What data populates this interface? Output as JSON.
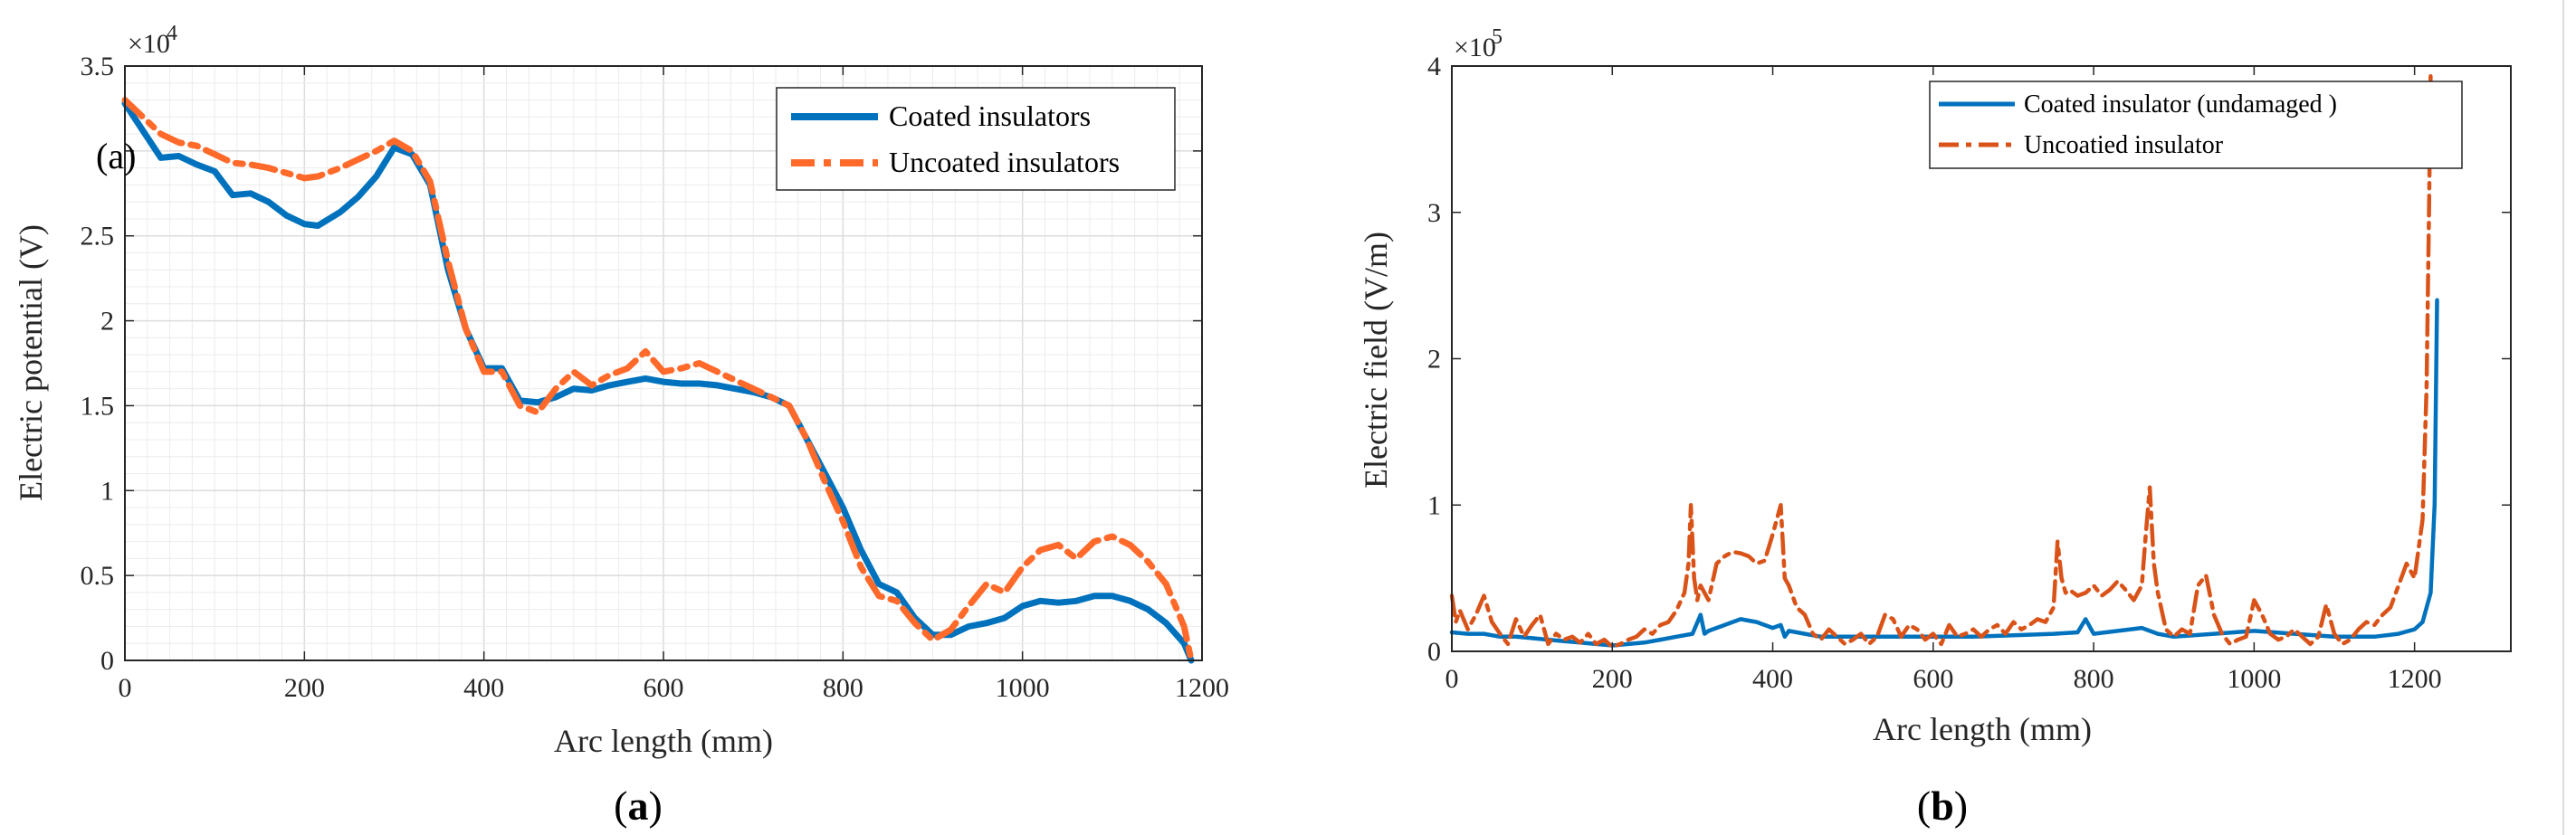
{
  "chart_data": [
    {
      "type": "line",
      "panel_label": "a",
      "title": "",
      "inset_label": "(a)",
      "xlabel": "Arc length (mm)",
      "ylabel": "Electric potential (V)",
      "y_exponent_base": "×10",
      "y_exponent_power": "4",
      "xlim": [
        0,
        1200
      ],
      "ylim": [
        0,
        3.5
      ],
      "xticks": [
        0,
        200,
        400,
        600,
        800,
        1000,
        1200
      ],
      "xtick_labels": [
        "0",
        "200",
        "400",
        "600",
        "800",
        "1000",
        "1200"
      ],
      "yticks": [
        0,
        0.5,
        1,
        1.5,
        2,
        2.5,
        3,
        3.5
      ],
      "ytick_labels": [
        "0",
        "0.5",
        "1",
        "1.5",
        "2",
        "2.5",
        "",
        "3.5"
      ],
      "grid": true,
      "legend_position": "top-right",
      "series": [
        {
          "name": "Coated insulators",
          "color": "#0072BD",
          "style": "solid",
          "x": [
            0,
            20,
            40,
            60,
            80,
            100,
            120,
            140,
            160,
            180,
            200,
            215,
            240,
            260,
            280,
            300,
            320,
            340,
            360,
            380,
            400,
            420,
            440,
            460,
            480,
            500,
            520,
            540,
            560,
            580,
            600,
            620,
            640,
            660,
            680,
            700,
            720,
            740,
            760,
            780,
            800,
            820,
            840,
            860,
            880,
            900,
            920,
            940,
            960,
            980,
            1000,
            1020,
            1040,
            1060,
            1080,
            1100,
            1120,
            1140,
            1160,
            1180,
            1188
          ],
          "values": [
            3.28,
            3.12,
            2.96,
            2.97,
            2.92,
            2.88,
            2.74,
            2.75,
            2.7,
            2.62,
            2.57,
            2.56,
            2.64,
            2.73,
            2.85,
            3.02,
            2.98,
            2.8,
            2.3,
            1.95,
            1.72,
            1.72,
            1.53,
            1.52,
            1.55,
            1.6,
            1.59,
            1.62,
            1.64,
            1.66,
            1.64,
            1.63,
            1.63,
            1.62,
            1.6,
            1.58,
            1.55,
            1.5,
            1.3,
            1.1,
            0.9,
            0.65,
            0.45,
            0.4,
            0.25,
            0.15,
            0.15,
            0.2,
            0.22,
            0.25,
            0.32,
            0.35,
            0.34,
            0.35,
            0.38,
            0.38,
            0.35,
            0.3,
            0.22,
            0.1,
            0.0
          ]
        },
        {
          "name": "Uncoated insulators",
          "color": "#FF6A2B",
          "style": "dash-dot",
          "x": [
            0,
            20,
            40,
            60,
            80,
            100,
            120,
            140,
            160,
            180,
            200,
            215,
            240,
            260,
            280,
            300,
            320,
            340,
            360,
            380,
            400,
            420,
            440,
            460,
            480,
            500,
            520,
            540,
            560,
            580,
            600,
            620,
            640,
            660,
            680,
            700,
            720,
            740,
            760,
            780,
            800,
            820,
            840,
            860,
            880,
            900,
            920,
            940,
            960,
            980,
            1000,
            1020,
            1040,
            1060,
            1080,
            1100,
            1120,
            1140,
            1160,
            1180,
            1188
          ],
          "values": [
            3.3,
            3.2,
            3.1,
            3.05,
            3.03,
            2.98,
            2.93,
            2.92,
            2.9,
            2.87,
            2.84,
            2.85,
            2.9,
            2.95,
            3.0,
            3.06,
            3.0,
            2.82,
            2.35,
            1.95,
            1.7,
            1.7,
            1.5,
            1.46,
            1.6,
            1.7,
            1.62,
            1.68,
            1.72,
            1.82,
            1.7,
            1.72,
            1.75,
            1.7,
            1.65,
            1.6,
            1.55,
            1.5,
            1.3,
            1.05,
            0.82,
            0.55,
            0.38,
            0.35,
            0.22,
            0.12,
            0.18,
            0.32,
            0.45,
            0.4,
            0.55,
            0.65,
            0.68,
            0.6,
            0.7,
            0.73,
            0.68,
            0.58,
            0.45,
            0.2,
            0.0
          ]
        }
      ]
    },
    {
      "type": "line",
      "panel_label": "b",
      "title": "",
      "xlabel": "Arc length (mm)",
      "ylabel": "Electric field (V/m)",
      "y_exponent_base": "×10",
      "y_exponent_power": "5",
      "xlim": [
        0,
        1320
      ],
      "ylim": [
        0,
        4
      ],
      "xticks": [
        0,
        200,
        400,
        600,
        800,
        1000,
        1200
      ],
      "xtick_labels": [
        "0",
        "200",
        "400",
        "600",
        "800",
        "1000",
        "1200"
      ],
      "yticks": [
        0,
        1,
        2,
        3,
        4
      ],
      "ytick_labels": [
        "0",
        "1",
        "2",
        "3",
        "4"
      ],
      "grid": false,
      "legend_position": "top-right",
      "series": [
        {
          "name": "Coated insulator (undamaged )",
          "color": "#0072BD",
          "style": "solid",
          "x": [
            0,
            20,
            40,
            60,
            80,
            100,
            120,
            140,
            160,
            180,
            200,
            220,
            240,
            260,
            280,
            300,
            310,
            315,
            320,
            330,
            340,
            360,
            380,
            400,
            410,
            415,
            420,
            440,
            460,
            500,
            550,
            600,
            650,
            700,
            750,
            780,
            790,
            800,
            830,
            860,
            880,
            900,
            950,
            1000,
            1050,
            1100,
            1150,
            1180,
            1200,
            1210,
            1220,
            1225,
            1228
          ],
          "values": [
            0.13,
            0.12,
            0.12,
            0.1,
            0.1,
            0.09,
            0.08,
            0.07,
            0.06,
            0.05,
            0.04,
            0.05,
            0.06,
            0.08,
            0.1,
            0.12,
            0.25,
            0.12,
            0.14,
            0.16,
            0.18,
            0.22,
            0.2,
            0.16,
            0.18,
            0.1,
            0.14,
            0.12,
            0.1,
            0.1,
            0.1,
            0.1,
            0.1,
            0.11,
            0.12,
            0.13,
            0.22,
            0.12,
            0.14,
            0.16,
            0.12,
            0.1,
            0.12,
            0.14,
            0.12,
            0.1,
            0.1,
            0.12,
            0.15,
            0.2,
            0.4,
            1.0,
            2.4
          ]
        },
        {
          "name": "Uncoatied insulator",
          "color": "#D95319",
          "style": "dash-dot",
          "x": [
            0,
            5,
            10,
            20,
            30,
            40,
            50,
            60,
            70,
            80,
            90,
            100,
            110,
            120,
            130,
            140,
            150,
            160,
            170,
            180,
            190,
            200,
            210,
            220,
            230,
            240,
            250,
            260,
            270,
            280,
            290,
            295,
            298,
            302,
            306,
            310,
            320,
            330,
            340,
            350,
            360,
            370,
            380,
            390,
            400,
            410,
            415,
            420,
            430,
            440,
            450,
            460,
            470,
            480,
            490,
            500,
            510,
            520,
            530,
            540,
            550,
            560,
            570,
            580,
            590,
            600,
            610,
            620,
            630,
            640,
            650,
            660,
            670,
            680,
            690,
            700,
            710,
            720,
            730,
            740,
            750,
            755,
            760,
            765,
            770,
            780,
            790,
            800,
            810,
            820,
            830,
            840,
            850,
            860,
            865,
            870,
            875,
            880,
            890,
            900,
            910,
            920,
            930,
            940,
            950,
            960,
            970,
            980,
            990,
            1000,
            1010,
            1020,
            1030,
            1040,
            1050,
            1060,
            1070,
            1080,
            1090,
            1100,
            1110,
            1120,
            1130,
            1140,
            1150,
            1160,
            1170,
            1180,
            1190,
            1200,
            1210,
            1215,
            1218,
            1220
          ],
          "values": [
            0.38,
            0.2,
            0.28,
            0.15,
            0.25,
            0.38,
            0.2,
            0.12,
            0.05,
            0.22,
            0.1,
            0.18,
            0.25,
            0.05,
            0.12,
            0.08,
            0.1,
            0.06,
            0.12,
            0.05,
            0.08,
            0.03,
            0.05,
            0.08,
            0.1,
            0.15,
            0.12,
            0.18,
            0.2,
            0.28,
            0.4,
            0.6,
            1.0,
            0.5,
            0.35,
            0.45,
            0.35,
            0.6,
            0.65,
            0.68,
            0.67,
            0.65,
            0.6,
            0.62,
            0.8,
            1.0,
            0.5,
            0.45,
            0.3,
            0.25,
            0.12,
            0.08,
            0.15,
            0.1,
            0.05,
            0.08,
            0.12,
            0.05,
            0.1,
            0.25,
            0.22,
            0.1,
            0.18,
            0.15,
            0.08,
            0.12,
            0.05,
            0.18,
            0.1,
            0.12,
            0.15,
            0.1,
            0.15,
            0.18,
            0.12,
            0.2,
            0.15,
            0.18,
            0.22,
            0.2,
            0.3,
            0.75,
            0.5,
            0.4,
            0.42,
            0.38,
            0.4,
            0.45,
            0.38,
            0.42,
            0.48,
            0.42,
            0.35,
            0.45,
            0.8,
            1.12,
            0.6,
            0.4,
            0.15,
            0.1,
            0.15,
            0.12,
            0.45,
            0.52,
            0.25,
            0.12,
            0.05,
            0.08,
            0.1,
            0.35,
            0.25,
            0.12,
            0.08,
            0.1,
            0.15,
            0.1,
            0.05,
            0.1,
            0.32,
            0.12,
            0.05,
            0.08,
            0.15,
            0.2,
            0.18,
            0.25,
            0.3,
            0.45,
            0.6,
            0.5,
            0.9,
            1.8,
            3.0,
            3.95
          ]
        }
      ]
    }
  ]
}
